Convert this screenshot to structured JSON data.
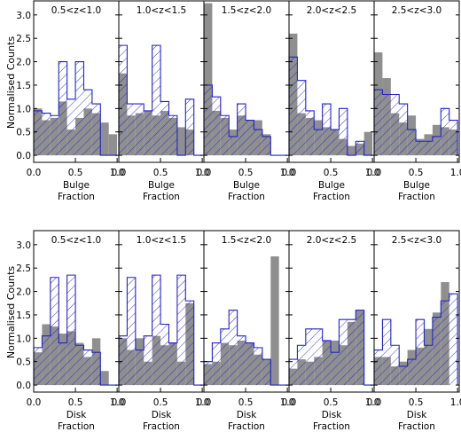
{
  "chart_data": [
    {
      "type": "histogram-grid",
      "ylabel": "Normalised Counts",
      "xlabel_line1": "Bulge",
      "xlabel_line2": "Fraction",
      "ylim": [
        -0.15,
        3.3
      ],
      "xlim": [
        0.0,
        1.02
      ],
      "yticks": [
        "0.0",
        "0.5",
        "1.0",
        "1.5",
        "2.0",
        "2.5",
        "3.0"
      ],
      "xticks": [
        "0.0",
        "0.5",
        "1.0"
      ],
      "bin_width": 0.1,
      "series_styles": {
        "gray": "#8f8f8f",
        "blue": "#2222cc"
      },
      "panels": [
        {
          "label": "0.5<z<1.0",
          "gray": [
            1.0,
            0.75,
            0.8,
            1.15,
            0.55,
            0.8,
            1.0,
            0.9,
            0.7,
            0.45
          ],
          "blue": [
            0.95,
            0.9,
            0.85,
            2.0,
            1.2,
            2.0,
            1.4,
            1.1,
            0.0,
            0.0
          ]
        },
        {
          "label": "1.0<z<1.5",
          "gray": [
            1.75,
            0.85,
            0.9,
            0.95,
            0.85,
            0.95,
            0.8,
            0.6,
            0.55,
            0.0
          ],
          "blue": [
            2.35,
            1.1,
            1.1,
            0.95,
            2.35,
            1.15,
            0.85,
            0.0,
            1.2,
            0.0
          ]
        },
        {
          "label": "1.5<z<2.0",
          "gray": [
            3.25,
            0.95,
            0.8,
            0.55,
            0.85,
            0.75,
            0.75,
            0.45,
            0.0,
            0.0
          ],
          "blue": [
            1.5,
            1.25,
            0.85,
            0.4,
            1.1,
            0.75,
            0.55,
            0.4,
            0.0,
            0.0
          ]
        },
        {
          "label": "2.0<z<2.5",
          "gray": [
            2.6,
            0.9,
            0.8,
            0.75,
            0.6,
            0.55,
            0.35,
            0.2,
            0.25,
            0.5
          ],
          "blue": [
            2.1,
            1.6,
            0.95,
            0.55,
            1.1,
            0.55,
            1.0,
            0.0,
            0.3,
            0.0
          ]
        },
        {
          "label": "2.5<z<3.0",
          "gray": [
            2.2,
            1.65,
            0.9,
            0.7,
            0.85,
            0.35,
            0.45,
            0.65,
            0.6,
            0.55
          ],
          "blue": [
            1.4,
            1.3,
            1.3,
            1.1,
            0.55,
            0.3,
            0.3,
            0.4,
            1.0,
            0.75
          ]
        }
      ]
    },
    {
      "type": "histogram-grid",
      "ylabel": "Normalised Counts",
      "xlabel_line1": "Disk",
      "xlabel_line2": "Fraction",
      "ylim": [
        -0.15,
        3.3
      ],
      "xlim": [
        0.0,
        1.02
      ],
      "yticks": [
        "0.0",
        "0.5",
        "1.0",
        "1.5",
        "2.0",
        "2.5",
        "3.0"
      ],
      "xticks": [
        "0.0",
        "0.5",
        "1.0"
      ],
      "bin_width": 0.1,
      "series_styles": {
        "gray": "#8f8f8f",
        "blue": "#2222cc"
      },
      "panels": [
        {
          "label": "0.5<z<1.0",
          "gray": [
            0.7,
            1.3,
            1.25,
            1.1,
            1.15,
            0.9,
            0.6,
            1.0,
            0.3,
            0.0
          ],
          "blue": [
            0.8,
            1.05,
            2.3,
            0.9,
            2.35,
            0.85,
            0.75,
            0.7,
            0.0,
            0.0
          ]
        },
        {
          "label": "1.0<z<1.5",
          "gray": [
            1.0,
            0.75,
            1.0,
            0.5,
            1.05,
            0.85,
            0.9,
            0.5,
            1.75,
            0.0
          ],
          "blue": [
            1.05,
            2.3,
            0.75,
            1.05,
            2.35,
            1.3,
            0.9,
            2.35,
            1.8,
            0.0
          ]
        },
        {
          "label": "1.5<z<2.0",
          "gray": [
            0.45,
            0.5,
            0.9,
            0.85,
            0.95,
            0.9,
            0.65,
            0.55,
            2.75,
            0.0
          ],
          "blue": [
            0.5,
            0.9,
            1.2,
            1.6,
            1.05,
            0.9,
            0.8,
            0.55,
            0.0,
            0.0
          ]
        },
        {
          "label": "2.0<z<2.5",
          "gray": [
            0.35,
            0.55,
            0.5,
            0.6,
            0.95,
            0.95,
            0.85,
            1.35,
            1.6,
            0.0
          ],
          "blue": [
            0.55,
            0.85,
            1.2,
            1.2,
            0.95,
            0.7,
            1.4,
            1.4,
            1.6,
            0.0
          ]
        },
        {
          "label": "2.5<z<3.0",
          "gray": [
            0.6,
            0.6,
            0.4,
            0.5,
            0.75,
            0.8,
            1.2,
            1.55,
            2.2,
            0.0
          ],
          "blue": [
            0.75,
            1.4,
            0.85,
            0.4,
            0.55,
            1.4,
            0.85,
            1.45,
            1.8,
            1.95
          ]
        }
      ]
    }
  ]
}
